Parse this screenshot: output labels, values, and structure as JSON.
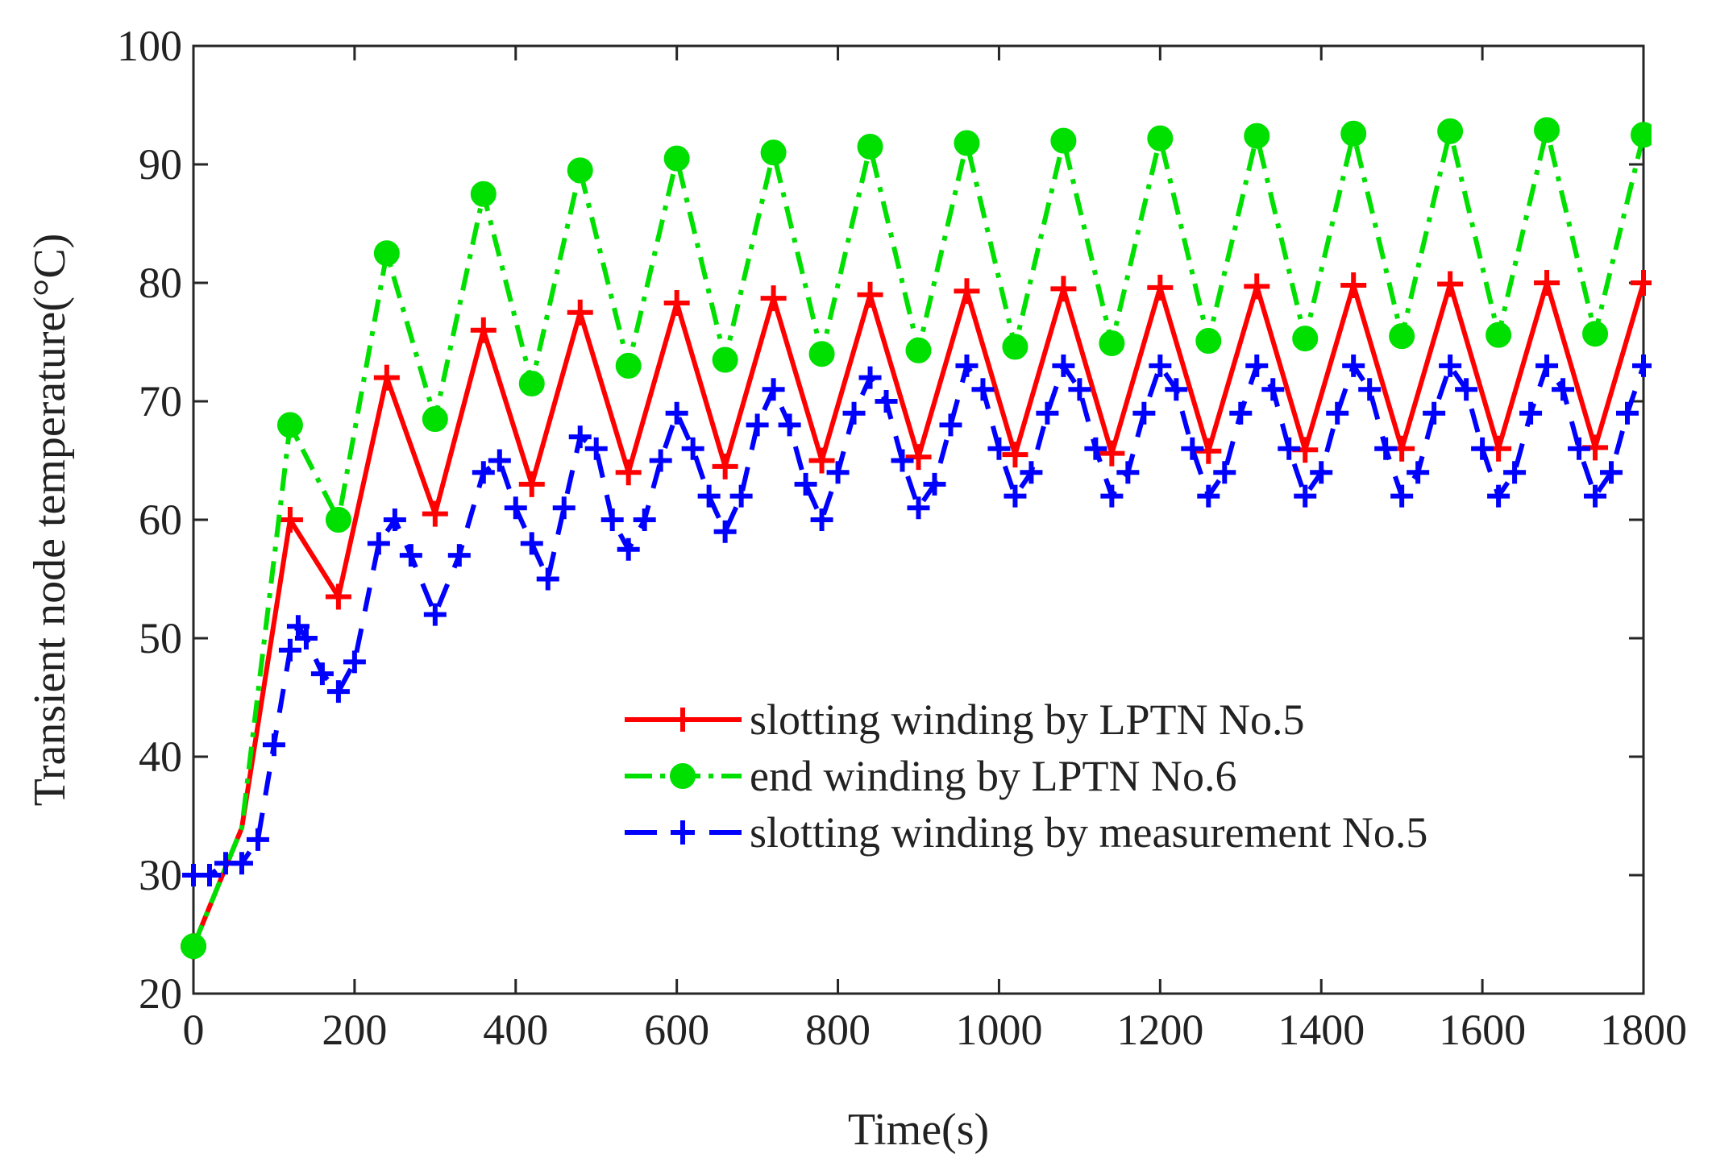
{
  "chart_data": {
    "type": "line",
    "title": "",
    "xlabel": "Time(s)",
    "ylabel": "Transient node temperature(°C)",
    "xlim": [
      0,
      1800
    ],
    "ylim": [
      20,
      100
    ],
    "xticks": [
      0,
      200,
      400,
      600,
      800,
      1000,
      1200,
      1400,
      1600,
      1800
    ],
    "yticks": [
      20,
      30,
      40,
      50,
      60,
      70,
      80,
      90,
      100
    ],
    "legend_position": "center-right",
    "series": [
      {
        "name": "slotting winding by LPTN No.5",
        "color": "#ff0000",
        "style": "solid",
        "marker": "plus",
        "x": [
          0,
          60,
          120,
          180,
          240,
          300,
          360,
          420,
          480,
          540,
          600,
          660,
          720,
          780,
          840,
          900,
          960,
          1020,
          1080,
          1140,
          1200,
          1260,
          1320,
          1380,
          1440,
          1500,
          1560,
          1620,
          1680,
          1740,
          1800
        ],
        "values": [
          24,
          34,
          60,
          53.5,
          72,
          60.5,
          76,
          63,
          77.5,
          64,
          78.3,
          64.5,
          78.7,
          65,
          79,
          65.3,
          79.3,
          65.5,
          79.5,
          65.6,
          79.6,
          65.8,
          79.7,
          65.9,
          79.8,
          66,
          79.9,
          66,
          80,
          66.1,
          80
        ]
      },
      {
        "name": "end winding by LPTN No.6",
        "color": "#00e000",
        "style": "dashdot",
        "marker": "dot",
        "x": [
          0,
          60,
          120,
          180,
          240,
          300,
          360,
          420,
          480,
          540,
          600,
          660,
          720,
          780,
          840,
          900,
          960,
          1020,
          1080,
          1140,
          1200,
          1260,
          1320,
          1380,
          1440,
          1500,
          1560,
          1620,
          1680,
          1740,
          1800
        ],
        "values": [
          24,
          34,
          68,
          60,
          82.5,
          68.5,
          87.5,
          71.5,
          89.5,
          73,
          90.5,
          73.5,
          91,
          74,
          91.5,
          74.3,
          91.8,
          74.6,
          92,
          74.9,
          92.2,
          75.1,
          92.4,
          75.3,
          92.6,
          75.5,
          92.8,
          75.6,
          92.9,
          75.7,
          92.5
        ]
      },
      {
        "name": "slotting winding by measurement No.5",
        "color": "#0000ff",
        "style": "dashed",
        "marker": "plus",
        "x": [
          0,
          20,
          40,
          60,
          80,
          100,
          120,
          130,
          140,
          160,
          180,
          200,
          230,
          250,
          270,
          300,
          330,
          360,
          380,
          400,
          420,
          440,
          460,
          480,
          500,
          520,
          540,
          560,
          580,
          600,
          620,
          640,
          660,
          680,
          700,
          720,
          740,
          760,
          780,
          800,
          820,
          840,
          860,
          880,
          900,
          920,
          940,
          960,
          980,
          1000,
          1020,
          1040,
          1060,
          1080,
          1100,
          1120,
          1140,
          1160,
          1180,
          1200,
          1220,
          1240,
          1260,
          1280,
          1300,
          1320,
          1340,
          1360,
          1380,
          1400,
          1420,
          1440,
          1460,
          1480,
          1500,
          1520,
          1540,
          1560,
          1580,
          1600,
          1620,
          1640,
          1660,
          1680,
          1700,
          1720,
          1740,
          1760,
          1780,
          1800
        ],
        "values": [
          30,
          30,
          31,
          31,
          33,
          41,
          49,
          51,
          50,
          47,
          45.5,
          48,
          58,
          60,
          57,
          52,
          57,
          64,
          65,
          61,
          58,
          55,
          61,
          67,
          66,
          60,
          57.5,
          60,
          65,
          69,
          66,
          62,
          59,
          62,
          68,
          71,
          68,
          63,
          60,
          64,
          69,
          72,
          70,
          65,
          61,
          63,
          68,
          73,
          71,
          66,
          62,
          64,
          69,
          73,
          71,
          66,
          62,
          64,
          69,
          73,
          71,
          66,
          62,
          64,
          69,
          73,
          71,
          66,
          62,
          64,
          69,
          73,
          71,
          66,
          62,
          64,
          69,
          73,
          71,
          66,
          62,
          64,
          69,
          73,
          71,
          66,
          62,
          64,
          69,
          73
        ]
      }
    ]
  }
}
